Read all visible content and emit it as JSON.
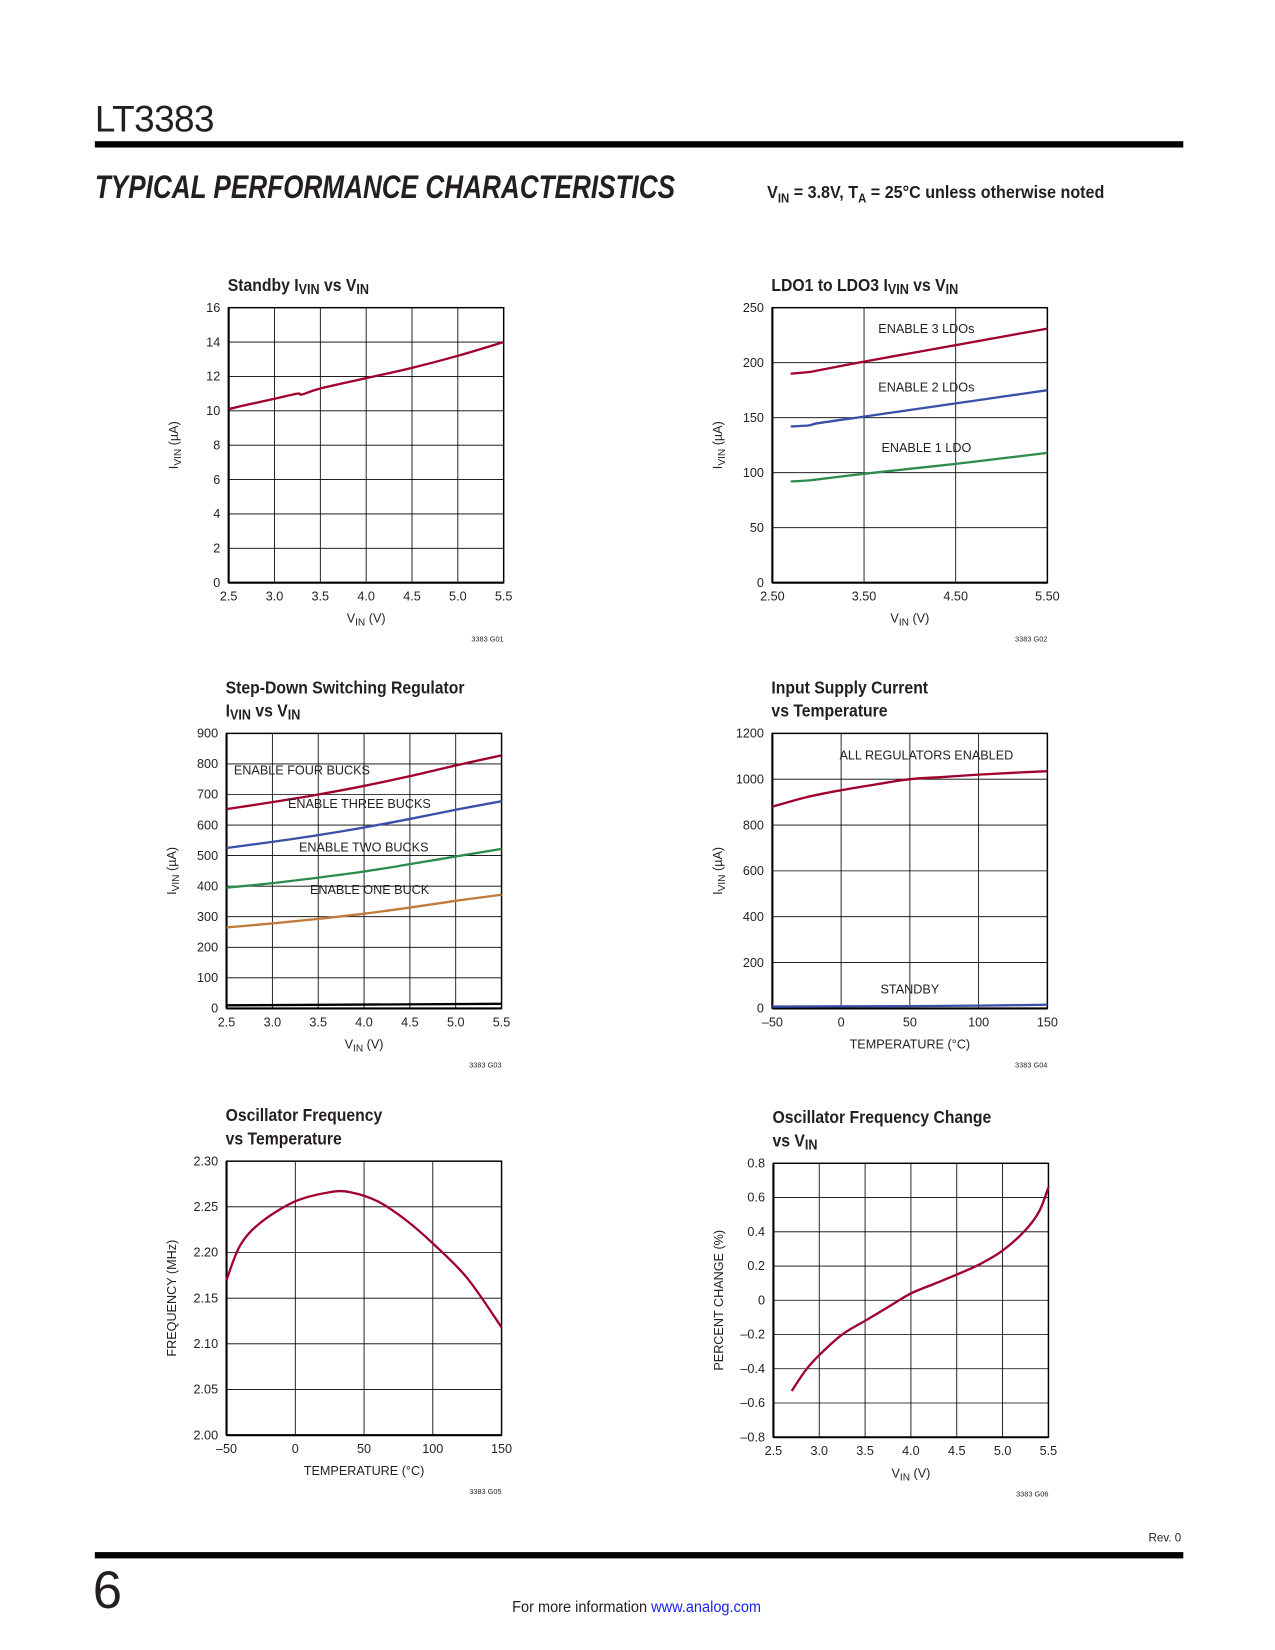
{
  "header": {
    "part_number": "LT3383",
    "section_title": "TYPICAL PERFORMANCE CHARACTERISTICS",
    "conditions": {
      "v": "V",
      "v_sub": "IN",
      "mid": " = 3.8V, T",
      "t_sub": "A",
      "tail": " = 25°C unless otherwise noted"
    }
  },
  "footer": {
    "revision": "Rev. 0",
    "page_number": "6",
    "more_info": "For more information ",
    "link": "www.analog.com",
    "link_color": "#1a25ee"
  },
  "chart_data": [
    {
      "type": "line",
      "code": "3383 G01",
      "title": [
        [
          [
            "Standby I",
            ""
          ],
          [
            "VIN",
            "sub"
          ],
          [
            " vs V",
            ""
          ],
          [
            "IN",
            "sub"
          ]
        ]
      ],
      "xlabel": [
        [
          "V",
          ""
        ],
        [
          "IN",
          "sub"
        ],
        [
          " (V)",
          ""
        ]
      ],
      "ylabel": [
        [
          "I",
          ""
        ],
        [
          "VIN",
          "sub"
        ],
        [
          " (µA)",
          ""
        ]
      ],
      "xlim": [
        2.5,
        5.5
      ],
      "ylim": [
        0,
        16
      ],
      "xticks": [
        [
          2.5,
          "2.5"
        ],
        [
          3.0,
          "3.0"
        ],
        [
          3.5,
          "3.5"
        ],
        [
          4.0,
          "4.0"
        ],
        [
          4.5,
          "4.5"
        ],
        [
          5.0,
          "5.0"
        ],
        [
          5.5,
          "5.5"
        ]
      ],
      "yticks": [
        [
          0,
          "0"
        ],
        [
          2,
          "2"
        ],
        [
          4,
          "4"
        ],
        [
          6,
          "6"
        ],
        [
          8,
          "8"
        ],
        [
          10,
          "10"
        ],
        [
          12,
          "12"
        ],
        [
          14,
          "14"
        ],
        [
          16,
          "16"
        ]
      ],
      "xgrid": [
        3.0,
        3.5,
        4.0,
        4.5,
        5.0
      ],
      "ygrid": [
        2,
        4,
        6,
        8,
        10,
        12,
        14
      ],
      "grid": true,
      "series": [
        {
          "color": "#a0002e",
          "x": [
            2.5,
            2.7,
            3.0,
            3.25,
            3.3,
            3.5,
            4.0,
            4.5,
            5.0,
            5.5
          ],
          "y": [
            10.1,
            10.35,
            10.7,
            11.0,
            10.95,
            11.3,
            11.9,
            12.5,
            13.2,
            14.0
          ]
        }
      ],
      "annotations": []
    },
    {
      "type": "line",
      "code": "3383 G02",
      "title": [
        [
          [
            "LDO1 to LDO3 I",
            ""
          ],
          [
            "VIN",
            "sub"
          ],
          [
            " vs V",
            ""
          ],
          [
            "IN",
            "sub"
          ]
        ]
      ],
      "xlabel": [
        [
          "V",
          ""
        ],
        [
          "IN",
          "sub"
        ],
        [
          " (V)",
          ""
        ]
      ],
      "ylabel": [
        [
          "I",
          ""
        ],
        [
          "VIN",
          "sub"
        ],
        [
          " (µA)",
          ""
        ]
      ],
      "xlim": [
        2.5,
        5.5
      ],
      "ylim": [
        0,
        250
      ],
      "xticks": [
        [
          2.5,
          "2.50"
        ],
        [
          3.5,
          "3.50"
        ],
        [
          4.5,
          "4.50"
        ],
        [
          5.5,
          "5.50"
        ]
      ],
      "yticks": [
        [
          0,
          "0"
        ],
        [
          50,
          "50"
        ],
        [
          100,
          "100"
        ],
        [
          150,
          "150"
        ],
        [
          200,
          "200"
        ],
        [
          250,
          "250"
        ]
      ],
      "xgrid": [
        3.5,
        4.5
      ],
      "ygrid": [
        50,
        100,
        150,
        200
      ],
      "grid": true,
      "series": [
        {
          "name": "ENABLE 3 LDOs",
          "color": "#a0002e",
          "x": [
            2.7,
            2.9,
            3.0,
            3.5,
            4.0,
            4.5,
            5.0,
            5.5
          ],
          "y": [
            190,
            191.5,
            193,
            201,
            208.5,
            216,
            223.5,
            231
          ]
        },
        {
          "name": "ENABLE 2 LDOs",
          "color": "#3a50a8",
          "x": [
            2.7,
            2.9,
            3.0,
            3.5,
            4.0,
            4.5,
            5.0,
            5.5
          ],
          "y": [
            142,
            143,
            145,
            151,
            157,
            163,
            169,
            175
          ]
        },
        {
          "name": "ENABLE 1 LDO",
          "color": "#2e8b4e",
          "x": [
            2.7,
            2.9,
            3.0,
            3.5,
            4.0,
            4.5,
            5.0,
            5.5
          ],
          "y": [
            92,
            93,
            94,
            99,
            103.5,
            108,
            113,
            118
          ]
        }
      ],
      "annotations": [
        {
          "text": "ENABLE 3 LDOs",
          "x": 4.18,
          "y": 227,
          "anchor": "middle"
        },
        {
          "text": "ENABLE 2 LDOs",
          "x": 4.18,
          "y": 174,
          "anchor": "middle"
        },
        {
          "text": "ENABLE 1 LDO",
          "x": 4.18,
          "y": 119,
          "anchor": "middle"
        }
      ]
    },
    {
      "type": "line",
      "code": "3383 G03",
      "title": [
        [
          [
            "Step-Down Switching Regulator",
            ""
          ]
        ],
        [
          [
            "I",
            ""
          ],
          [
            "VIN",
            "sub"
          ],
          [
            " vs V",
            ""
          ],
          [
            "IN",
            "sub"
          ]
        ]
      ],
      "xlabel": [
        [
          "V",
          ""
        ],
        [
          "IN",
          "sub"
        ],
        [
          " (V)",
          ""
        ]
      ],
      "ylabel": [
        [
          "I",
          ""
        ],
        [
          "VIN",
          "sub"
        ],
        [
          " (µA)",
          ""
        ]
      ],
      "xlim": [
        2.5,
        5.5
      ],
      "ylim": [
        0,
        900
      ],
      "xticks": [
        [
          2.5,
          "2.5"
        ],
        [
          3.0,
          "3.0"
        ],
        [
          3.5,
          "3.5"
        ],
        [
          4.0,
          "4.0"
        ],
        [
          4.5,
          "4.5"
        ],
        [
          5.0,
          "5.0"
        ],
        [
          5.5,
          "5.5"
        ]
      ],
      "yticks": [
        [
          0,
          "0"
        ],
        [
          100,
          "100"
        ],
        [
          200,
          "200"
        ],
        [
          300,
          "300"
        ],
        [
          400,
          "400"
        ],
        [
          500,
          "500"
        ],
        [
          600,
          "600"
        ],
        [
          700,
          "700"
        ],
        [
          800,
          "800"
        ],
        [
          900,
          "900"
        ]
      ],
      "xgrid": [
        3.0,
        3.5,
        4.0,
        4.5,
        5.0
      ],
      "ygrid": [
        100,
        200,
        300,
        400,
        500,
        600,
        700,
        800
      ],
      "grid": true,
      "series": [
        {
          "name": "ENABLE FOUR BUCKS",
          "color": "#a0002e",
          "x": [
            2.5,
            3.0,
            3.5,
            4.0,
            4.5,
            5.0,
            5.5
          ],
          "y": [
            652,
            675,
            700,
            728,
            760,
            795,
            828
          ]
        },
        {
          "name": "ENABLE THREE BUCKS",
          "color": "#3a50a8",
          "x": [
            2.5,
            3.0,
            3.5,
            4.0,
            4.5,
            5.0,
            5.5
          ],
          "y": [
            525,
            545,
            567,
            592,
            620,
            650,
            678
          ]
        },
        {
          "name": "ENABLE TWO BUCKS",
          "color": "#2e8b4e",
          "x": [
            2.5,
            3.0,
            3.5,
            4.0,
            4.5,
            5.0,
            5.5
          ],
          "y": [
            395,
            410,
            428,
            448,
            472,
            497,
            522
          ]
        },
        {
          "name": "ENABLE ONE BUCK",
          "color": "#c07a3a",
          "x": [
            2.5,
            3.0,
            3.5,
            4.0,
            4.5,
            5.0,
            5.5
          ],
          "y": [
            265,
            278,
            293,
            310,
            330,
            352,
            372
          ]
        },
        {
          "color": "#000000",
          "x": [
            2.5,
            5.5
          ],
          "y": [
            10,
            15
          ]
        }
      ],
      "annotations": [
        {
          "text": "ENABLE FOUR BUCKS",
          "x": 2.58,
          "y": 765,
          "anchor": "start"
        },
        {
          "text": "ENABLE THREE BUCKS",
          "x": 3.17,
          "y": 655,
          "anchor": "start"
        },
        {
          "text": "ENABLE TWO BUCKS",
          "x": 3.29,
          "y": 513,
          "anchor": "start"
        },
        {
          "text": "ENABLE ONE BUCK",
          "x": 3.41,
          "y": 375,
          "anchor": "start"
        }
      ]
    },
    {
      "type": "line",
      "code": "3383 G04",
      "title": [
        [
          [
            "Input Supply Current",
            ""
          ]
        ],
        [
          [
            "vs Temperature",
            ""
          ]
        ]
      ],
      "xlabel": [
        [
          "TEMPERATURE (°C)",
          ""
        ]
      ],
      "ylabel": [
        [
          "I",
          ""
        ],
        [
          "VIN",
          "sub"
        ],
        [
          " (µA)",
          ""
        ]
      ],
      "xlim": [
        -50,
        150
      ],
      "ylim": [
        0,
        1200
      ],
      "xticks": [
        [
          -50,
          "–50"
        ],
        [
          0,
          "0"
        ],
        [
          50,
          "50"
        ],
        [
          100,
          "100"
        ],
        [
          150,
          "150"
        ]
      ],
      "yticks": [
        [
          0,
          "0"
        ],
        [
          200,
          "200"
        ],
        [
          400,
          "400"
        ],
        [
          600,
          "600"
        ],
        [
          800,
          "800"
        ],
        [
          1000,
          "1000"
        ],
        [
          1200,
          "1200"
        ]
      ],
      "xgrid": [
        0,
        50,
        100
      ],
      "ygrid": [
        200,
        400,
        600,
        800,
        1000
      ],
      "grid": true,
      "series": [
        {
          "name": "ALL REGULATORS ENABLED",
          "color": "#a0002e",
          "x": [
            -50,
            -25,
            0,
            25,
            50,
            75,
            100,
            125,
            150
          ],
          "y": [
            880,
            922,
            952,
            977,
            1000,
            1010,
            1020,
            1028,
            1035
          ]
        },
        {
          "name": "STANDBY",
          "color": "#3a50a8",
          "x": [
            -50,
            0,
            50,
            100,
            150
          ],
          "y": [
            8,
            9,
            10,
            12,
            16
          ]
        }
      ],
      "annotations": [
        {
          "text": "ALL REGULATORS ENABLED",
          "x": 62,
          "y": 1086,
          "anchor": "middle"
        },
        {
          "text": "STANDBY",
          "x": 50,
          "y": 64,
          "anchor": "middle"
        }
      ]
    },
    {
      "type": "line",
      "code": "3383 G05",
      "title": [
        [
          [
            "Oscillator Frequency",
            ""
          ]
        ],
        [
          [
            "vs Temperature",
            ""
          ]
        ]
      ],
      "xlabel": [
        [
          "TEMPERATURE (°C)",
          ""
        ]
      ],
      "ylabel": [
        [
          "FREQUENCY (MHz)",
          ""
        ]
      ],
      "xlim": [
        -50,
        150
      ],
      "ylim": [
        2.0,
        2.3
      ],
      "xticks": [
        [
          -50,
          "–50"
        ],
        [
          0,
          "0"
        ],
        [
          50,
          "50"
        ],
        [
          100,
          "100"
        ],
        [
          150,
          "150"
        ]
      ],
      "yticks": [
        [
          2.0,
          "2.00"
        ],
        [
          2.05,
          "2.05"
        ],
        [
          2.1,
          "2.10"
        ],
        [
          2.15,
          "2.15"
        ],
        [
          2.2,
          "2.20"
        ],
        [
          2.25,
          "2.25"
        ],
        [
          2.3,
          "2.30"
        ]
      ],
      "xgrid": [
        0,
        50,
        100
      ],
      "ygrid": [
        2.05,
        2.1,
        2.15,
        2.2,
        2.25
      ],
      "grid": true,
      "series": [
        {
          "color": "#a0002e",
          "x": [
            -50,
            -40,
            -25,
            0,
            25,
            40,
            60,
            80,
            100,
            125,
            150
          ],
          "y": [
            2.17,
            2.208,
            2.233,
            2.256,
            2.266,
            2.266,
            2.256,
            2.236,
            2.21,
            2.172,
            2.118
          ]
        }
      ],
      "annotations": []
    },
    {
      "type": "line",
      "code": "3383 G06",
      "title": [
        [
          [
            "Oscillator Frequency Change",
            ""
          ]
        ],
        [
          [
            "vs V",
            ""
          ],
          [
            "IN",
            "sub"
          ]
        ]
      ],
      "xlabel": [
        [
          "V",
          ""
        ],
        [
          "IN",
          "sub"
        ],
        [
          " (V)",
          ""
        ]
      ],
      "ylabel": [
        [
          "PERCENT CHANGE (%)",
          ""
        ]
      ],
      "xlim": [
        2.5,
        5.5
      ],
      "ylim": [
        -0.8,
        0.8
      ],
      "xticks": [
        [
          2.5,
          "2.5"
        ],
        [
          3.0,
          "3.0"
        ],
        [
          3.5,
          "3.5"
        ],
        [
          4.0,
          "4.0"
        ],
        [
          4.5,
          "4.5"
        ],
        [
          5.0,
          "5.0"
        ],
        [
          5.5,
          "5.5"
        ]
      ],
      "yticks": [
        [
          -0.8,
          "–0.8"
        ],
        [
          -0.6,
          "–0.6"
        ],
        [
          -0.4,
          "–0.4"
        ],
        [
          -0.2,
          "–0.2"
        ],
        [
          0,
          "0"
        ],
        [
          0.2,
          "0.2"
        ],
        [
          0.4,
          "0.4"
        ],
        [
          0.6,
          "0.6"
        ],
        [
          0.8,
          "0.8"
        ]
      ],
      "xgrid": [
        3.0,
        3.5,
        4.0,
        4.5,
        5.0
      ],
      "ygrid": [
        -0.6,
        -0.4,
        -0.2,
        0,
        0.2,
        0.4,
        0.6
      ],
      "grid": true,
      "series": [
        {
          "color": "#a0002e",
          "x": [
            2.7,
            2.85,
            3.0,
            3.25,
            3.5,
            3.75,
            4.0,
            4.25,
            4.5,
            4.75,
            5.0,
            5.25,
            5.4,
            5.5
          ],
          "y": [
            -0.53,
            -0.41,
            -0.32,
            -0.2,
            -0.12,
            -0.04,
            0.04,
            0.095,
            0.15,
            0.21,
            0.29,
            0.41,
            0.52,
            0.66
          ]
        }
      ],
      "annotations": []
    }
  ]
}
